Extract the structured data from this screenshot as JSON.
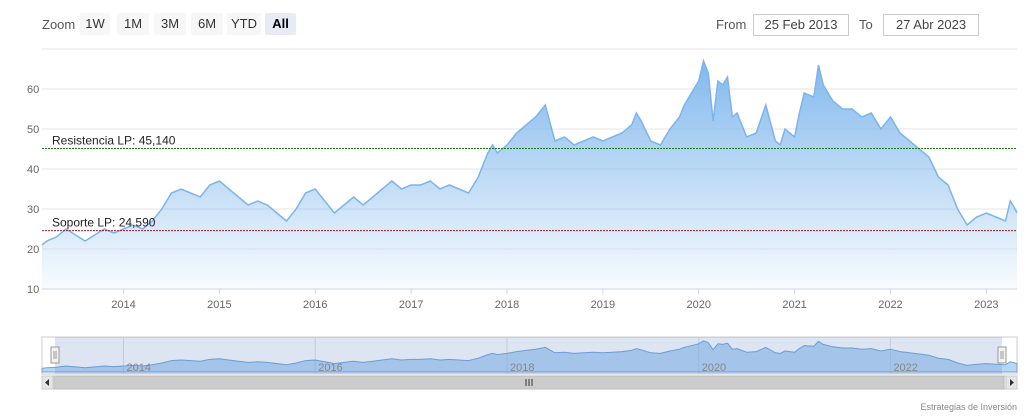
{
  "toolbar": {
    "zoom_label": "Zoom",
    "zoom_buttons": [
      "1W",
      "1M",
      "3M",
      "6M",
      "YTD",
      "All"
    ],
    "active_zoom": "All",
    "from_label": "From",
    "from_date": "25 Feb 2013",
    "to_label": "To",
    "to_date": "27 Abr 2023"
  },
  "credit": "Estrategias de Inversión",
  "colors": {
    "series": "#7cb5ec",
    "resistance": "#1a7a1a",
    "support": "#9b1b30"
  },
  "chart_data": {
    "type": "area",
    "x_unit": "year",
    "xlim": [
      2013.15,
      2023.32
    ],
    "ylim": [
      10,
      70
    ],
    "grid": true,
    "x_ticks": [
      "2014",
      "2015",
      "2016",
      "2017",
      "2018",
      "2019",
      "2020",
      "2021",
      "2022",
      "2023"
    ],
    "y_ticks": [
      "10",
      "20",
      "30",
      "40",
      "50",
      "60"
    ],
    "navigator_ticks": [
      "2014",
      "2016",
      "2018",
      "2020",
      "2022"
    ],
    "plot_lines": [
      {
        "label": "Resistencia LP: 45,140",
        "value": 45.14
      },
      {
        "label": "Soporte LP: 24,590",
        "value": 24.59
      }
    ],
    "series": [
      {
        "x": [
          2013.15,
          2013.2,
          2013.3,
          2013.4,
          2013.5,
          2013.6,
          2013.7,
          2013.8,
          2013.9,
          2014.0,
          2014.1,
          2014.2,
          2014.3,
          2014.4,
          2014.5,
          2014.6,
          2014.7,
          2014.8,
          2014.9,
          2015.0,
          2015.1,
          2015.2,
          2015.3,
          2015.4,
          2015.5,
          2015.6,
          2015.7,
          2015.8,
          2015.9,
          2016.0,
          2016.1,
          2016.2,
          2016.3,
          2016.4,
          2016.5,
          2016.6,
          2016.7,
          2016.8,
          2016.9,
          2017.0,
          2017.1,
          2017.2,
          2017.3,
          2017.4,
          2017.5,
          2017.6,
          2017.7,
          2017.8,
          2017.85,
          2017.9,
          2018.0,
          2018.1,
          2018.2,
          2018.3,
          2018.4,
          2018.5,
          2018.6,
          2018.7,
          2018.8,
          2018.9,
          2019.0,
          2019.1,
          2019.2,
          2019.3,
          2019.35,
          2019.4,
          2019.5,
          2019.6,
          2019.7,
          2019.8,
          2019.85,
          2019.9,
          2020.0,
          2020.05,
          2020.1,
          2020.15,
          2020.2,
          2020.25,
          2020.3,
          2020.35,
          2020.4,
          2020.5,
          2020.6,
          2020.7,
          2020.8,
          2020.85,
          2020.9,
          2021.0,
          2021.05,
          2021.1,
          2021.2,
          2021.25,
          2021.3,
          2021.4,
          2021.5,
          2021.6,
          2021.7,
          2021.8,
          2021.9,
          2022.0,
          2022.1,
          2022.2,
          2022.3,
          2022.4,
          2022.5,
          2022.6,
          2022.7,
          2022.8,
          2022.9,
          2023.0,
          2023.1,
          2023.2,
          2023.25,
          2023.3,
          2023.32
        ],
        "y": [
          21,
          22,
          23,
          25,
          23.5,
          22,
          23.5,
          25,
          24,
          25,
          26,
          25,
          27,
          30,
          34,
          35,
          34,
          33,
          36,
          37,
          35,
          33,
          31,
          32,
          31,
          29,
          27,
          30,
          34,
          35,
          32,
          29,
          31,
          33,
          31,
          33,
          35,
          37,
          35,
          36,
          36,
          37,
          35,
          36,
          35,
          34,
          38,
          44,
          46,
          44,
          46,
          49,
          51,
          53,
          56,
          47,
          48,
          46,
          47,
          48,
          47,
          48,
          49,
          51,
          54,
          52,
          47,
          46,
          50,
          53,
          56,
          58,
          62,
          67,
          64,
          52,
          62,
          61,
          63,
          53,
          54,
          48,
          49,
          56,
          47,
          46,
          50,
          48,
          54,
          59,
          58,
          66,
          61,
          57,
          55,
          55,
          53,
          54,
          50,
          53,
          49,
          47,
          45,
          43,
          38,
          36,
          30,
          26,
          28,
          29,
          28,
          27,
          32,
          30,
          29
        ]
      }
    ]
  }
}
